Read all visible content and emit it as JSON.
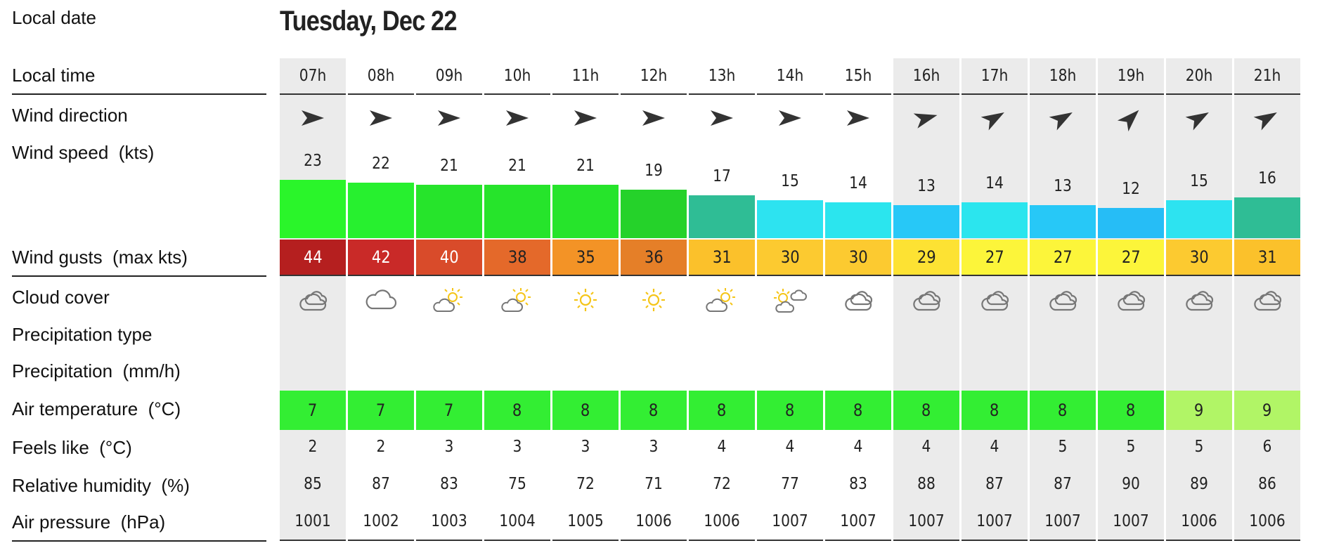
{
  "labels": {
    "local_date": "Local date",
    "local_time": "Local time",
    "wind_direction": "Wind direction",
    "wind_speed": "Wind speed  (kts)",
    "wind_gusts": "Wind gusts  (max kts)",
    "cloud_cover": "Cloud cover",
    "precip_type": "Precipitation type",
    "precip": "Precipitation  (mm/h)",
    "air_temp": "Air temperature  (°C)",
    "feels_like": "Feels like  (°C)",
    "humidity": "Relative humidity  (%)",
    "pressure": "Air pressure  (hPa)"
  },
  "date_title": "Tuesday, Dec 22",
  "hours": [
    {
      "time": "07h",
      "dir": "east",
      "speed": "23",
      "speed_color": "#2af52a",
      "gust": "44",
      "gust_color": "#b51f1f",
      "gust_text": "#ffffff",
      "cloud": "cloud-sun-icon",
      "temp": "7",
      "temp_color": "#33ee33",
      "feels": "2",
      "hum": "85",
      "pres": "1001",
      "shade": true
    },
    {
      "time": "08h",
      "dir": "east",
      "speed": "22",
      "speed_color": "#27f02f",
      "gust": "42",
      "gust_color": "#c92a28",
      "gust_text": "#ffffff",
      "cloud": "cloud-icon",
      "temp": "7",
      "temp_color": "#33ee33",
      "feels": "2",
      "hum": "87",
      "pres": "1002",
      "shade": false
    },
    {
      "time": "09h",
      "dir": "east",
      "speed": "21",
      "speed_color": "#26e42b",
      "gust": "40",
      "gust_color": "#d94b2a",
      "gust_text": "#ffffff",
      "cloud": "partly-sunny-icon",
      "temp": "7",
      "temp_color": "#33ee33",
      "feels": "3",
      "hum": "83",
      "pres": "1003",
      "shade": false
    },
    {
      "time": "10h",
      "dir": "east",
      "speed": "21",
      "speed_color": "#26e42b",
      "gust": "38",
      "gust_color": "#e4692a",
      "gust_text": "#222222",
      "cloud": "partly-sunny-icon",
      "temp": "8",
      "temp_color": "#33ee33",
      "feels": "3",
      "hum": "75",
      "pres": "1004",
      "shade": false
    },
    {
      "time": "11h",
      "dir": "east",
      "speed": "21",
      "speed_color": "#26e42b",
      "gust": "35",
      "gust_color": "#f39326",
      "gust_text": "#222222",
      "cloud": "sun-icon",
      "temp": "8",
      "temp_color": "#33ee33",
      "feels": "3",
      "hum": "72",
      "pres": "1005",
      "shade": false
    },
    {
      "time": "12h",
      "dir": "east",
      "speed": "19",
      "speed_color": "#25d22a",
      "gust": "36",
      "gust_color": "#e57f28",
      "gust_text": "#222222",
      "cloud": "sun-icon",
      "temp": "8",
      "temp_color": "#33ee33",
      "feels": "3",
      "hum": "71",
      "pres": "1006",
      "shade": false
    },
    {
      "time": "13h",
      "dir": "east",
      "speed": "17",
      "speed_color": "#2fbd95",
      "gust": "31",
      "gust_color": "#fbc12b",
      "gust_text": "#222222",
      "cloud": "partly-sunny-icon",
      "temp": "8",
      "temp_color": "#33ee33",
      "feels": "4",
      "hum": "72",
      "pres": "1006",
      "shade": false
    },
    {
      "time": "14h",
      "dir": "east",
      "speed": "15",
      "speed_color": "#2de3f0",
      "gust": "30",
      "gust_color": "#fcca30",
      "gust_text": "#222222",
      "cloud": "sun-clouds-icon",
      "temp": "8",
      "temp_color": "#33ee33",
      "feels": "4",
      "hum": "77",
      "pres": "1007",
      "shade": false
    },
    {
      "time": "15h",
      "dir": "east",
      "speed": "14",
      "speed_color": "#2be5ee",
      "gust": "30",
      "gust_color": "#fcca30",
      "gust_text": "#222222",
      "cloud": "cloud-sun-icon",
      "temp": "8",
      "temp_color": "#33ee33",
      "feels": "4",
      "hum": "83",
      "pres": "1007",
      "shade": false
    },
    {
      "time": "16h",
      "dir": "east-northeast",
      "speed": "13",
      "speed_color": "#27c8f7",
      "gust": "29",
      "gust_color": "#fde233",
      "gust_text": "#222222",
      "cloud": "cloud-sun-icon",
      "temp": "8",
      "temp_color": "#33ee33",
      "feels": "4",
      "hum": "88",
      "pres": "1007",
      "shade": true
    },
    {
      "time": "17h",
      "dir": "northeast",
      "speed": "14",
      "speed_color": "#2be5ee",
      "gust": "27",
      "gust_color": "#fcf53a",
      "gust_text": "#222222",
      "cloud": "cloud-sun-icon",
      "temp": "8",
      "temp_color": "#33ee33",
      "feels": "4",
      "hum": "87",
      "pres": "1007",
      "shade": true
    },
    {
      "time": "18h",
      "dir": "northeast",
      "speed": "13",
      "speed_color": "#27c8f7",
      "gust": "27",
      "gust_color": "#fcf53a",
      "gust_text": "#222222",
      "cloud": "cloud-sun-icon",
      "temp": "8",
      "temp_color": "#33ee33",
      "feels": "5",
      "hum": "87",
      "pres": "1007",
      "shade": true
    },
    {
      "time": "19h",
      "dir": "north-northeast",
      "speed": "12",
      "speed_color": "#26bdf6",
      "gust": "27",
      "gust_color": "#fcf53a",
      "gust_text": "#222222",
      "cloud": "cloud-sun-icon",
      "temp": "8",
      "temp_color": "#33ee33",
      "feels": "5",
      "hum": "90",
      "pres": "1007",
      "shade": true
    },
    {
      "time": "20h",
      "dir": "northeast",
      "speed": "15",
      "speed_color": "#2de3f0",
      "gust": "30",
      "gust_color": "#fcca30",
      "gust_text": "#222222",
      "cloud": "cloud-sun-icon",
      "temp": "9",
      "temp_color": "#b1f566",
      "feels": "5",
      "hum": "89",
      "pres": "1006",
      "shade": true
    },
    {
      "time": "21h",
      "dir": "northeast",
      "speed": "16",
      "speed_color": "#2fbd95",
      "gust": "31",
      "gust_color": "#fbc12b",
      "gust_text": "#222222",
      "cloud": "cloud-sun-icon",
      "temp": "9",
      "temp_color": "#b1f566",
      "feels": "6",
      "hum": "86",
      "pres": "1006",
      "shade": true
    }
  ]
}
